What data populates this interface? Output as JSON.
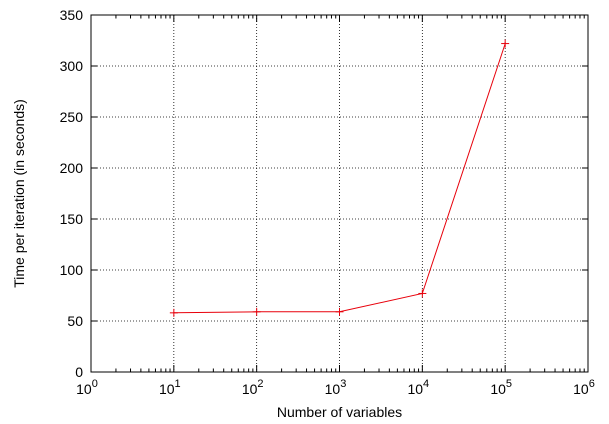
{
  "chart_data": {
    "type": "line",
    "title": "",
    "xlabel": "Number of variables",
    "ylabel": "Time per iteration (in seconds)",
    "x_scale": "log",
    "xlim": [
      1,
      1000000
    ],
    "ylim": [
      0,
      350
    ],
    "x_ticks": [
      {
        "value": 1,
        "base": "10",
        "exp": "0"
      },
      {
        "value": 10,
        "base": "10",
        "exp": "1"
      },
      {
        "value": 100,
        "base": "10",
        "exp": "2"
      },
      {
        "value": 1000,
        "base": "10",
        "exp": "3"
      },
      {
        "value": 10000,
        "base": "10",
        "exp": "4"
      },
      {
        "value": 100000,
        "base": "10",
        "exp": "5"
      },
      {
        "value": 1000000,
        "base": "10",
        "exp": "6"
      }
    ],
    "y_ticks": [
      0,
      50,
      100,
      150,
      200,
      250,
      300,
      350
    ],
    "grid": true,
    "legend": "none",
    "series": [
      {
        "color": "#e8000b",
        "marker": "plus",
        "x": [
          10,
          100,
          1000,
          10000,
          100000
        ],
        "y": [
          58,
          59,
          59,
          77,
          322
        ]
      }
    ]
  }
}
